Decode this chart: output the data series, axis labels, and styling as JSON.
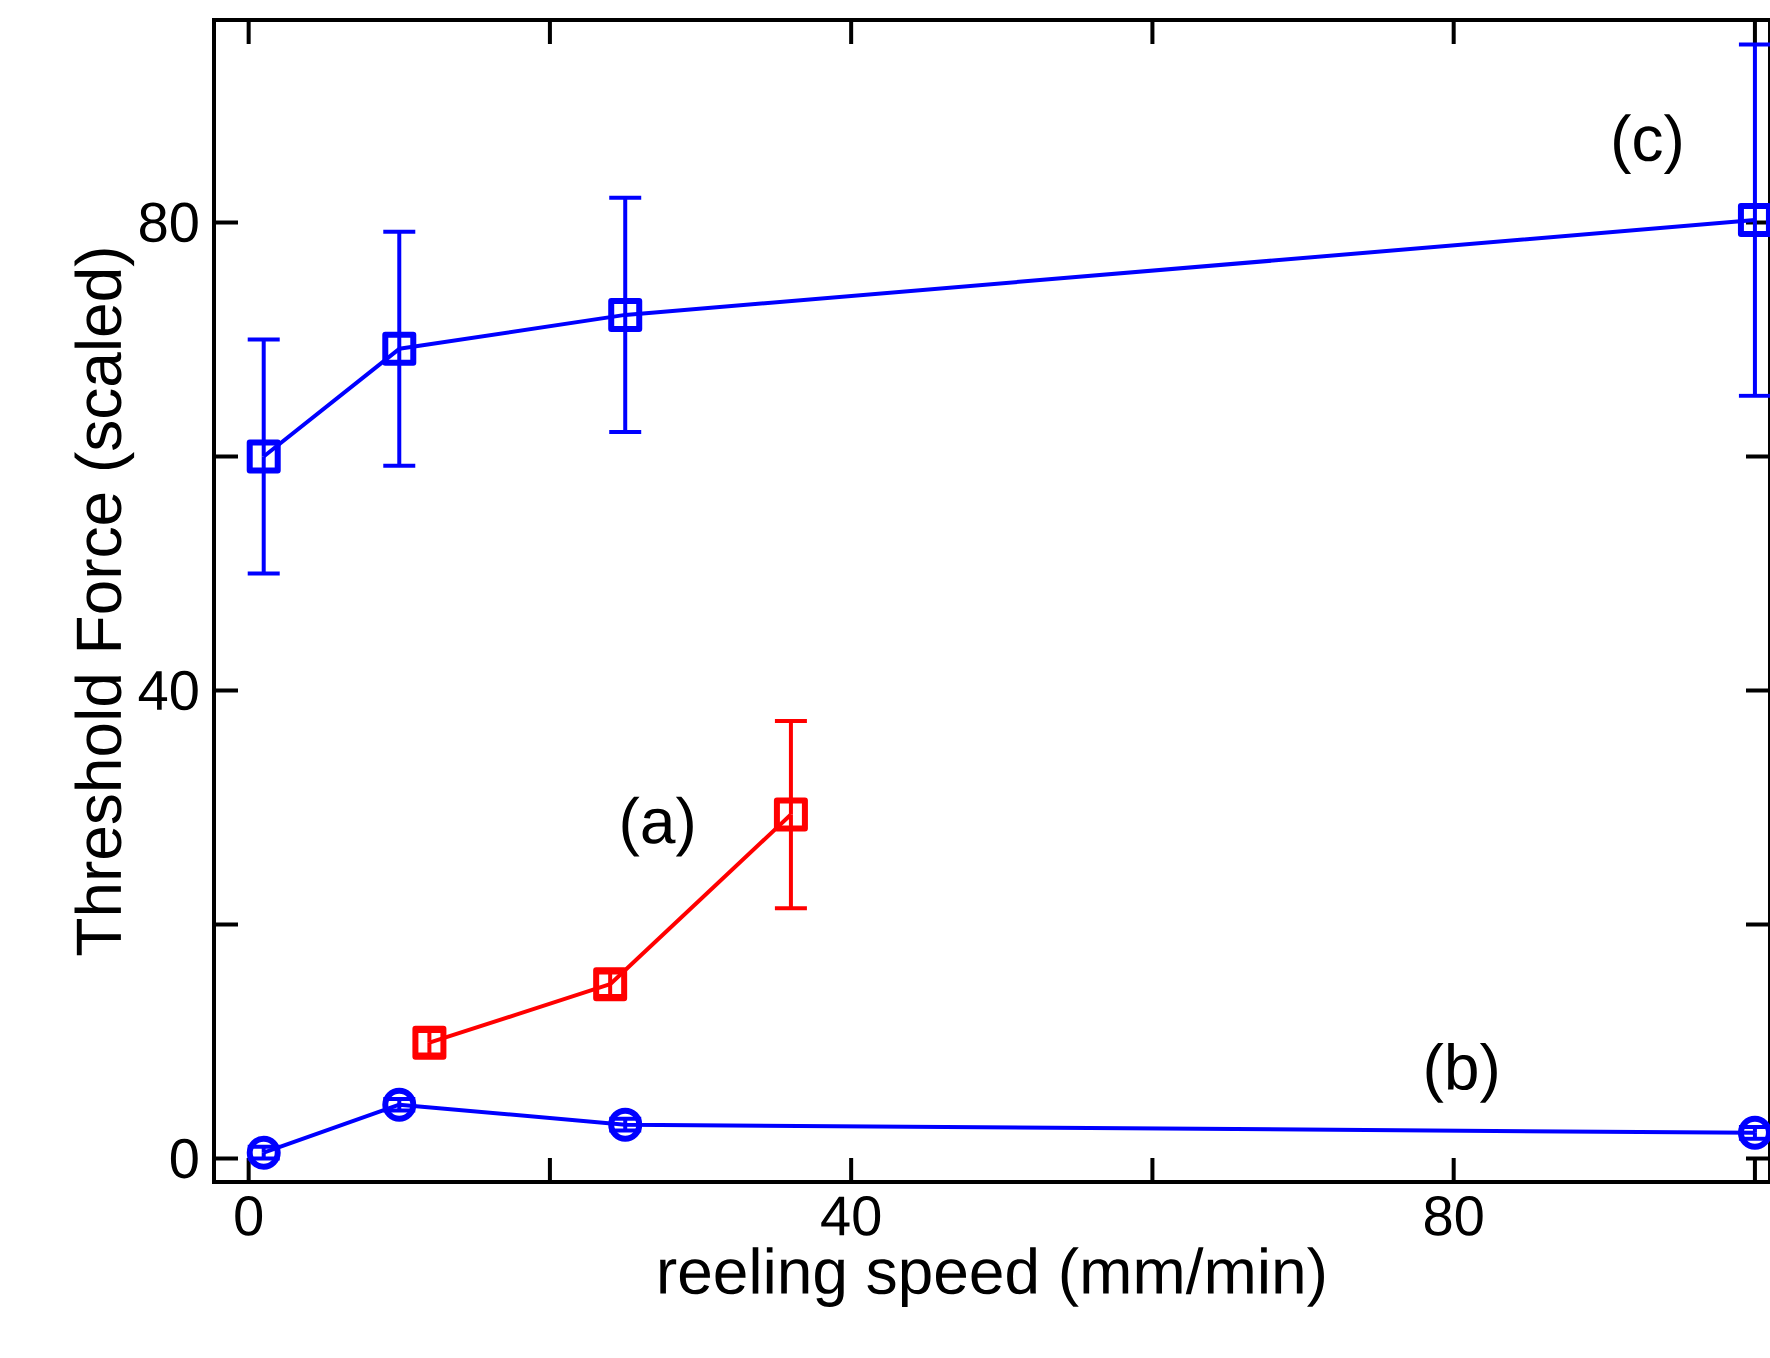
{
  "chart_data": {
    "type": "line",
    "xlabel": "reeling speed (mm/min)",
    "ylabel": "Threshold Force (scaled)",
    "xlim": [
      -2.3,
      101
    ],
    "ylim": [
      -2,
      97.3
    ],
    "xticks": [
      0,
      {
        "value": 20,
        "label": null
      },
      40,
      {
        "value": 60,
        "label": null
      },
      80,
      {
        "value": 100,
        "label": null
      }
    ],
    "yticks": [
      0,
      {
        "value": 20,
        "label": null
      },
      40,
      {
        "value": 60,
        "label": null
      },
      80
    ],
    "series": [
      {
        "name": "(c)",
        "color": "#0000ff",
        "marker": "square",
        "x": [
          1,
          10,
          25,
          100
        ],
        "values": [
          60,
          69.2,
          72.1,
          80.2
        ],
        "errors": [
          10,
          10,
          10,
          15
        ]
      },
      {
        "name": "(a)",
        "color": "#ff0000",
        "marker": "square",
        "x": [
          12,
          24,
          36
        ],
        "values": [
          9.9,
          14.9,
          29.4
        ],
        "errors": [
          1,
          1,
          8
        ]
      },
      {
        "name": "(b)",
        "color": "#0000ff",
        "marker": "circle",
        "x": [
          1,
          10,
          25,
          100
        ],
        "values": [
          0.5,
          4.6,
          2.9,
          2.2
        ],
        "errors": [
          0.5,
          0.5,
          0.5,
          0.5
        ]
      }
    ]
  }
}
